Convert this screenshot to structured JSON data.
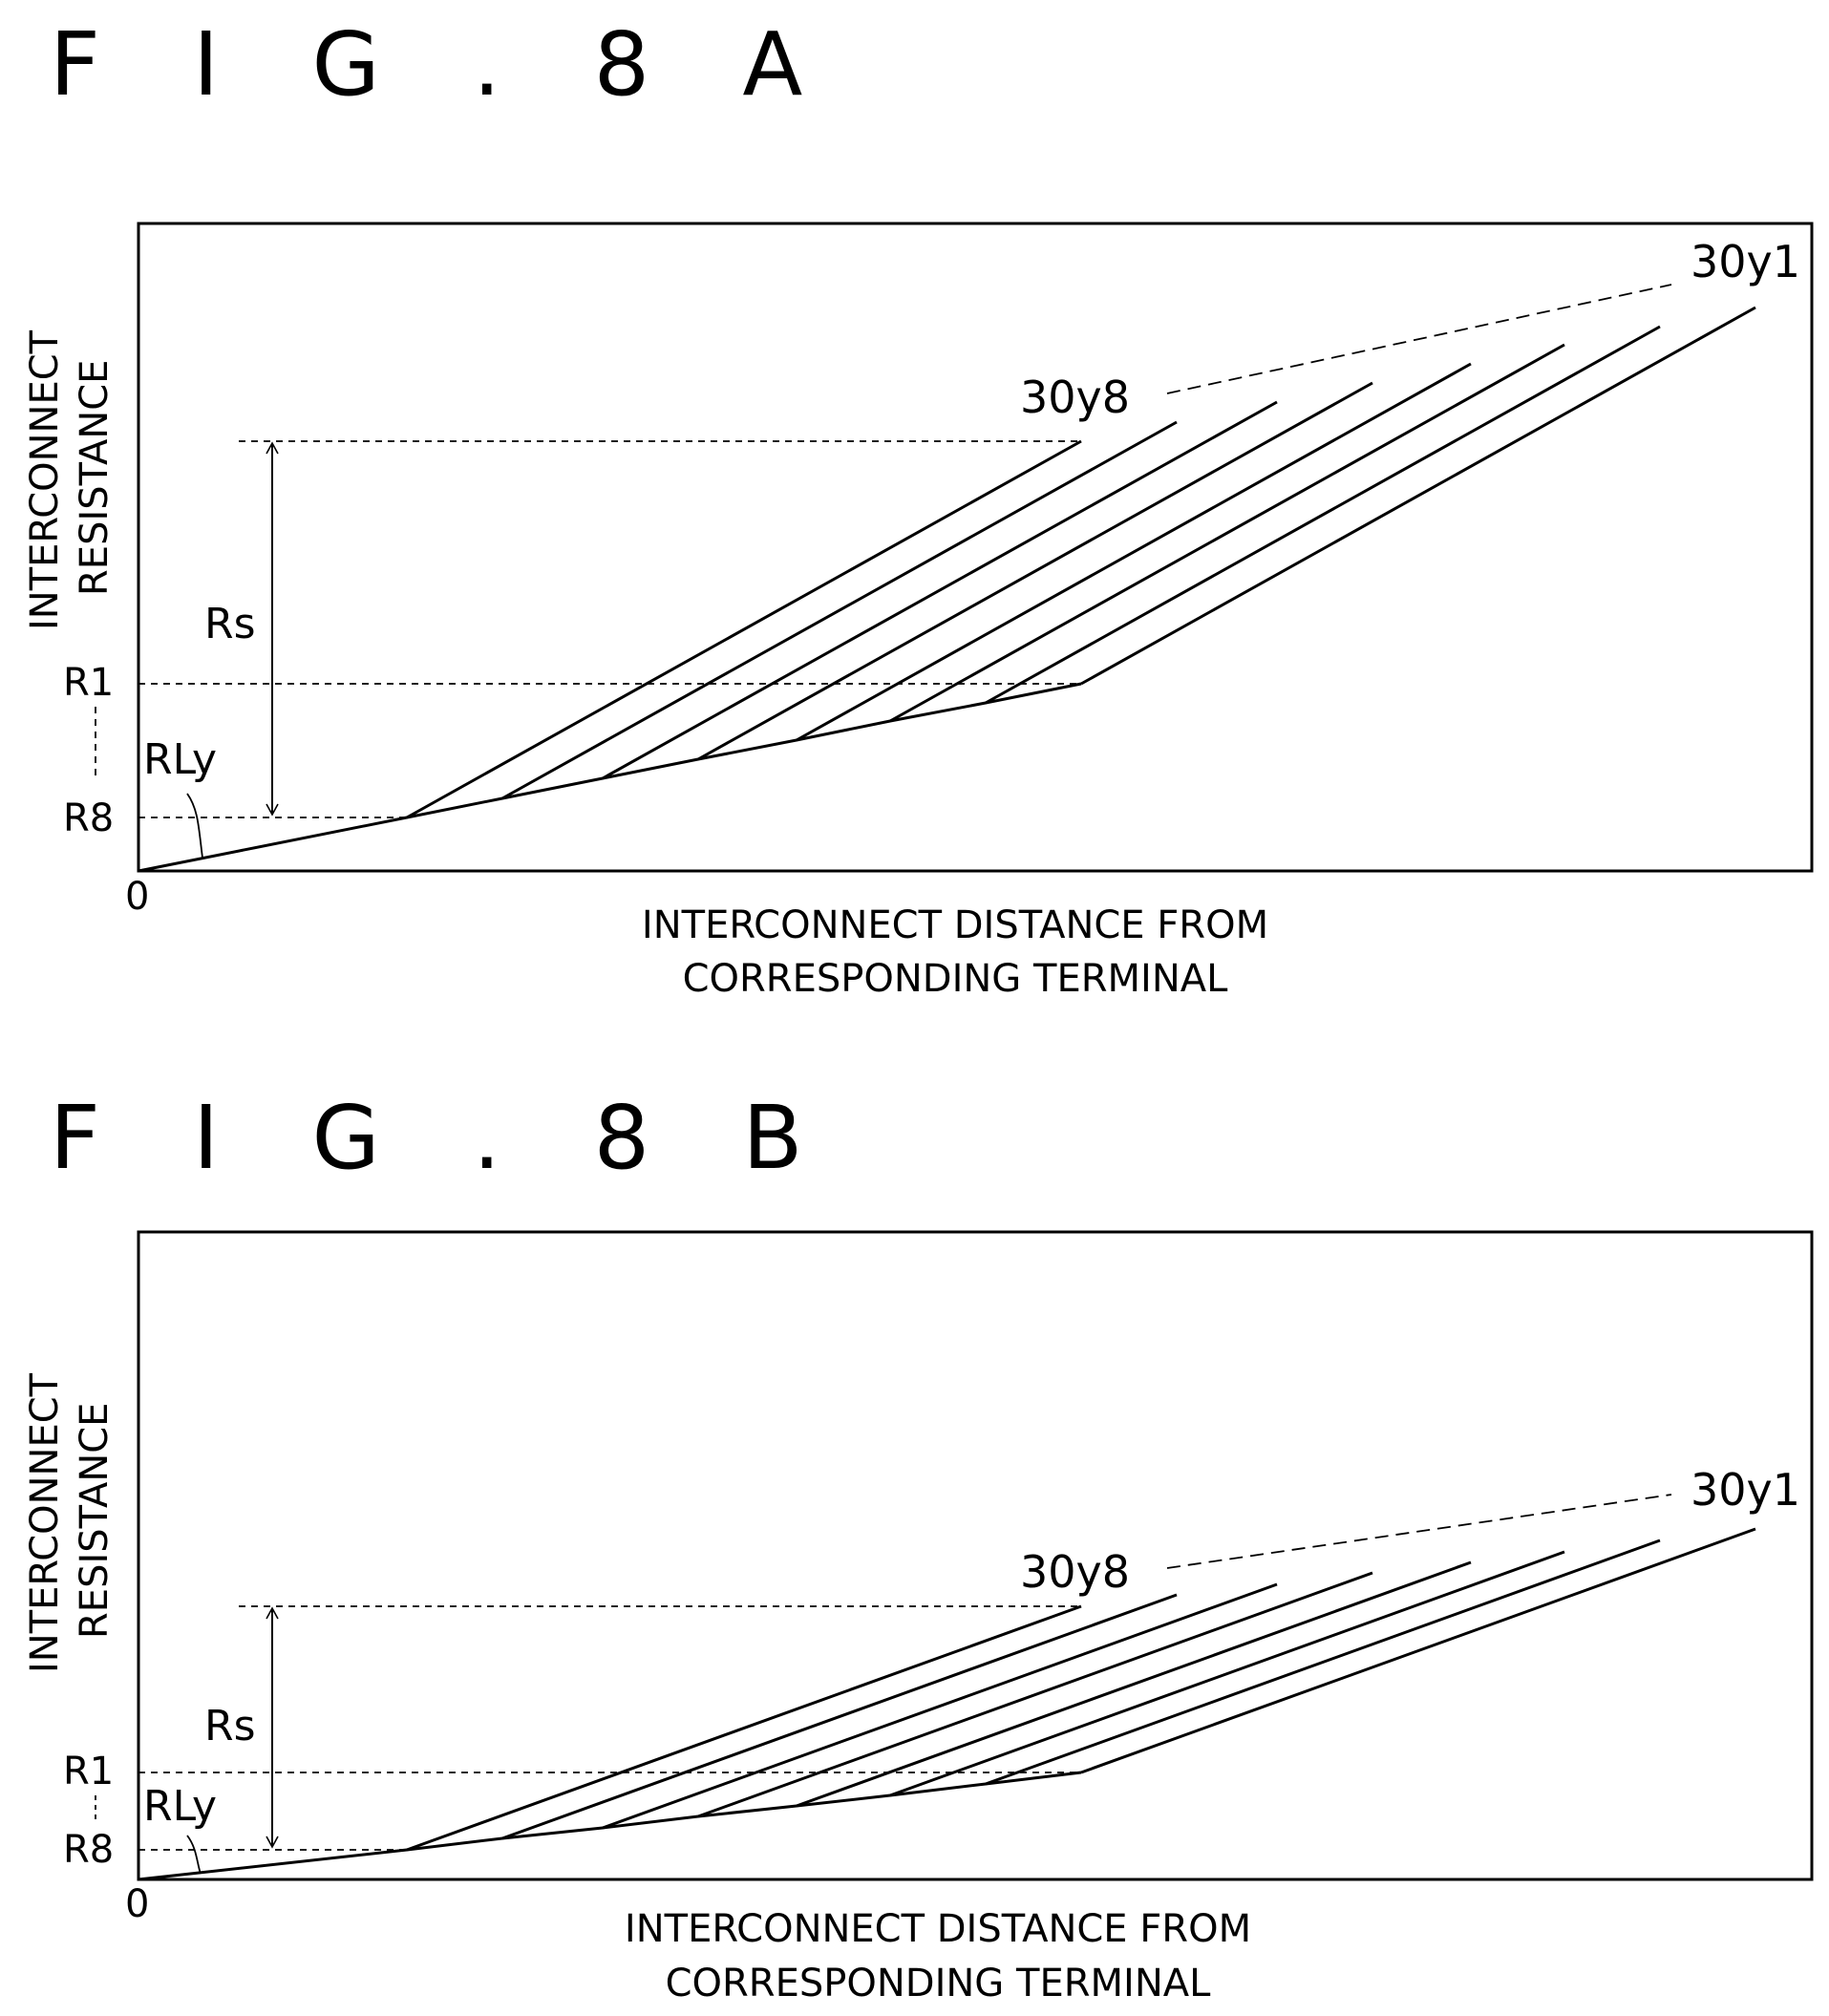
{
  "figures": [
    {
      "title": "F I G . 8 A",
      "ylabel_line1": "INTERCONNECT",
      "ylabel_line2": "RESISTANCE",
      "xlabel_line1": "INTERCONNECT DISTANCE FROM",
      "xlabel_line2": "CORRESPONDING TERMINAL",
      "origin_label": "0",
      "r1_label": "R1",
      "r8_label": "R8",
      "rs_label": "Rs",
      "rly_label": "RLy",
      "line_first_label": "30y1",
      "line_last_label": "30y8"
    },
    {
      "title": "F I G . 8 B",
      "ylabel_line1": "INTERCONNECT",
      "ylabel_line2": "RESISTANCE",
      "xlabel_line1": "INTERCONNECT DISTANCE FROM",
      "xlabel_line2": "CORRESPONDING TERMINAL",
      "origin_label": "0",
      "r1_label": "R1",
      "r8_label": "R8",
      "rs_label": "Rs",
      "rly_label": "RLy",
      "line_first_label": "30y1",
      "line_last_label": "30y8"
    }
  ]
}
